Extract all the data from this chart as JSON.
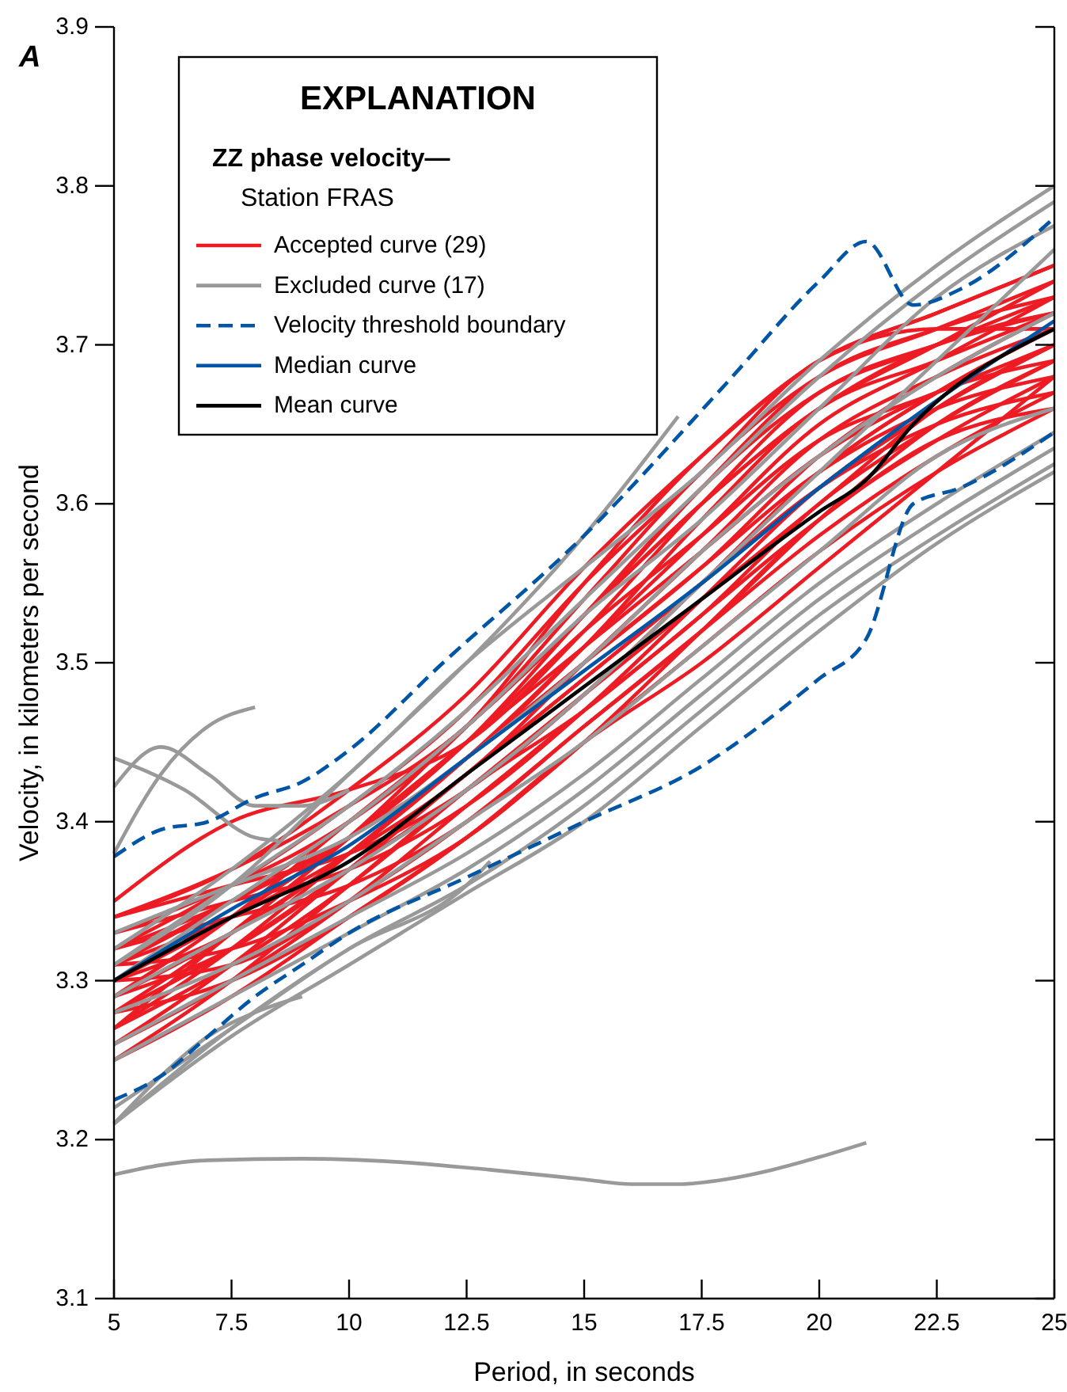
{
  "chart_data": {
    "type": "line",
    "title": "A",
    "xlabel": "Period, in seconds",
    "ylabel": "Velocity, in kilometers per second",
    "legend_title": "EXPLANATION",
    "subtitle": "ZZ phase velocity—",
    "annotations": [
      "Station FRAS"
    ],
    "xlim": [
      5,
      25
    ],
    "xticks": [
      5,
      7.5,
      10,
      12.5,
      15,
      17.5,
      20,
      22.5,
      25
    ],
    "ylim": [
      3.1,
      3.9
    ],
    "yticks": [
      3.1,
      3.2,
      3.3,
      3.4,
      3.5,
      3.6,
      3.7,
      3.8,
      3.9
    ],
    "grid": false,
    "legend": "top left",
    "marker": "none",
    "line_style": "solid",
    "x": [
      5,
      7.5,
      10,
      12.5,
      15,
      17.5,
      20,
      22.5,
      25
    ],
    "series": [
      {
        "name": "Accepted curve (29)",
        "color": "#ed1c24",
        "values": [
          3.35,
          3.4,
          3.42,
          3.45,
          3.52,
          3.6,
          3.67,
          3.7,
          3.72
        ]
      },
      {
        "color": "#ed1c24",
        "values": [
          3.34,
          3.37,
          3.41,
          3.46,
          3.54,
          3.62,
          3.68,
          3.71,
          3.74
        ]
      },
      {
        "color": "#ed1c24",
        "values": [
          3.33,
          3.36,
          3.4,
          3.46,
          3.55,
          3.63,
          3.69,
          3.72,
          3.75
        ]
      },
      {
        "color": "#ed1c24",
        "values": [
          3.32,
          3.35,
          3.39,
          3.45,
          3.53,
          3.61,
          3.67,
          3.7,
          3.73
        ]
      },
      {
        "color": "#ed1c24",
        "values": [
          3.32,
          3.36,
          3.41,
          3.47,
          3.55,
          3.62,
          3.69,
          3.71,
          3.71
        ]
      },
      {
        "color": "#ed1c24",
        "values": [
          3.31,
          3.35,
          3.39,
          3.44,
          3.51,
          3.59,
          3.66,
          3.69,
          3.72
        ]
      },
      {
        "color": "#ed1c24",
        "values": [
          3.31,
          3.34,
          3.38,
          3.43,
          3.5,
          3.57,
          3.64,
          3.68,
          3.71
        ]
      },
      {
        "color": "#ed1c24",
        "values": [
          3.3,
          3.34,
          3.39,
          3.45,
          3.52,
          3.58,
          3.64,
          3.67,
          3.7
        ]
      },
      {
        "color": "#ed1c24",
        "values": [
          3.3,
          3.33,
          3.38,
          3.44,
          3.51,
          3.58,
          3.65,
          3.69,
          3.73
        ]
      },
      {
        "color": "#ed1c24",
        "values": [
          3.29,
          3.33,
          3.38,
          3.44,
          3.5,
          3.56,
          3.63,
          3.68,
          3.72
        ]
      },
      {
        "color": "#ed1c24",
        "values": [
          3.29,
          3.32,
          3.37,
          3.43,
          3.49,
          3.55,
          3.61,
          3.66,
          3.7
        ]
      },
      {
        "color": "#ed1c24",
        "values": [
          3.28,
          3.32,
          3.37,
          3.42,
          3.48,
          3.55,
          3.62,
          3.67,
          3.71
        ]
      },
      {
        "color": "#ed1c24",
        "values": [
          3.28,
          3.33,
          3.39,
          3.45,
          3.51,
          3.57,
          3.63,
          3.67,
          3.69
        ]
      },
      {
        "color": "#ed1c24",
        "values": [
          3.27,
          3.31,
          3.36,
          3.42,
          3.48,
          3.54,
          3.6,
          3.66,
          3.7
        ]
      },
      {
        "color": "#ed1c24",
        "values": [
          3.27,
          3.32,
          3.38,
          3.44,
          3.5,
          3.56,
          3.62,
          3.66,
          3.68
        ]
      },
      {
        "color": "#ed1c24",
        "values": [
          3.26,
          3.3,
          3.35,
          3.41,
          3.47,
          3.53,
          3.6,
          3.65,
          3.69
        ]
      },
      {
        "color": "#ed1c24",
        "values": [
          3.26,
          3.31,
          3.37,
          3.43,
          3.49,
          3.55,
          3.61,
          3.65,
          3.67
        ]
      },
      {
        "color": "#ed1c24",
        "values": [
          3.25,
          3.29,
          3.34,
          3.39,
          3.45,
          3.52,
          3.59,
          3.64,
          3.68
        ]
      },
      {
        "color": "#ed1c24",
        "values": [
          3.25,
          3.3,
          3.36,
          3.42,
          3.47,
          3.53,
          3.59,
          3.64,
          3.66
        ]
      },
      {
        "color": "#ed1c24",
        "values": [
          3.33,
          3.35,
          3.37,
          3.41,
          3.47,
          3.54,
          3.61,
          3.66,
          3.7
        ]
      },
      {
        "color": "#ed1c24",
        "values": [
          3.34,
          3.36,
          3.38,
          3.42,
          3.48,
          3.55,
          3.62,
          3.67,
          3.71
        ]
      },
      {
        "color": "#ed1c24",
        "values": [
          3.32,
          3.34,
          3.36,
          3.4,
          3.46,
          3.52,
          3.59,
          3.65,
          3.69
        ]
      },
      {
        "color": "#ed1c24",
        "values": [
          3.3,
          3.31,
          3.35,
          3.4,
          3.46,
          3.52,
          3.58,
          3.63,
          3.67
        ]
      },
      {
        "color": "#ed1c24",
        "values": [
          3.31,
          3.32,
          3.35,
          3.39,
          3.45,
          3.51,
          3.57,
          3.62,
          3.66
        ]
      },
      {
        "color": "#ed1c24",
        "values": [
          3.28,
          3.3,
          3.34,
          3.39,
          3.45,
          3.5,
          3.56,
          3.62,
          3.68
        ]
      },
      {
        "color": "#ed1c24",
        "values": [
          3.29,
          3.34,
          3.4,
          3.46,
          3.53,
          3.6,
          3.66,
          3.7,
          3.74
        ]
      },
      {
        "color": "#ed1c24",
        "values": [
          3.34,
          3.37,
          3.42,
          3.48,
          3.56,
          3.63,
          3.69,
          3.72,
          3.75
        ]
      },
      {
        "color": "#ed1c24",
        "values": [
          3.27,
          3.33,
          3.39,
          3.46,
          3.53,
          3.6,
          3.66,
          3.7,
          3.72
        ]
      },
      {
        "color": "#ed1c24",
        "values": [
          3.31,
          3.35,
          3.4,
          3.46,
          3.53,
          3.61,
          3.68,
          3.71,
          3.73
        ]
      },
      {
        "name": "Excluded curve (17)",
        "color": "#999999",
        "x": [
          5,
          6,
          7,
          9,
          11,
          13,
          15,
          16,
          17,
          18,
          19,
          20,
          21
        ],
        "values": [
          3.178,
          3.184,
          3.187,
          3.188,
          3.186,
          3.181,
          3.175,
          3.172,
          3.172,
          3.175,
          3.181,
          3.189,
          3.198
        ]
      },
      {
        "color": "#999999",
        "x": [
          5,
          6.5,
          8,
          8.5
        ],
        "values": [
          3.44,
          3.42,
          3.39,
          3.388
        ]
      },
      {
        "color": "#999999",
        "x": [
          5,
          6,
          7,
          8,
          9,
          10
        ],
        "values": [
          3.422,
          3.447,
          3.43,
          3.41,
          3.41,
          3.42
        ]
      },
      {
        "color": "#999999",
        "x": [
          5,
          6,
          7,
          8
        ],
        "values": [
          3.38,
          3.43,
          3.46,
          3.472
        ]
      },
      {
        "color": "#999999",
        "x": [
          5,
          6,
          7,
          8,
          9
        ],
        "values": [
          3.21,
          3.24,
          3.265,
          3.28,
          3.29
        ]
      },
      {
        "color": "#999999",
        "x": [
          5,
          7.5,
          10,
          12.5,
          15,
          17
        ],
        "values": [
          3.31,
          3.36,
          3.43,
          3.5,
          3.58,
          3.655
        ]
      },
      {
        "color": "#999999",
        "x": [
          5,
          7.5,
          10,
          12.5,
          13
        ],
        "values": [
          3.21,
          3.27,
          3.32,
          3.36,
          3.375
        ]
      },
      {
        "color": "#999999",
        "values": [
          3.32,
          3.37,
          3.43,
          3.5,
          3.56,
          3.62,
          3.69,
          3.75,
          3.8
        ]
      },
      {
        "color": "#999999",
        "values": [
          3.31,
          3.36,
          3.41,
          3.47,
          3.54,
          3.61,
          3.68,
          3.74,
          3.79
        ]
      },
      {
        "color": "#999999",
        "values": [
          3.3,
          3.35,
          3.4,
          3.46,
          3.53,
          3.59,
          3.66,
          3.73,
          3.775
        ]
      },
      {
        "color": "#999999",
        "values": [
          3.29,
          3.33,
          3.37,
          3.42,
          3.48,
          3.55,
          3.62,
          3.69,
          3.76
        ]
      },
      {
        "color": "#999999",
        "values": [
          3.28,
          3.31,
          3.35,
          3.4,
          3.45,
          3.51,
          3.57,
          3.63,
          3.66
        ]
      },
      {
        "color": "#999999",
        "values": [
          3.26,
          3.3,
          3.34,
          3.38,
          3.43,
          3.49,
          3.55,
          3.6,
          3.645
        ]
      },
      {
        "color": "#999999",
        "values": [
          3.25,
          3.29,
          3.33,
          3.37,
          3.42,
          3.48,
          3.54,
          3.59,
          3.635
        ]
      },
      {
        "color": "#999999",
        "values": [
          3.22,
          3.27,
          3.32,
          3.36,
          3.41,
          3.47,
          3.53,
          3.58,
          3.625
        ]
      },
      {
        "color": "#999999",
        "values": [
          3.21,
          3.265,
          3.31,
          3.355,
          3.4,
          3.46,
          3.52,
          3.575,
          3.62
        ]
      },
      {
        "color": "#999999",
        "values": [
          3.33,
          3.36,
          3.39,
          3.44,
          3.5,
          3.57,
          3.63,
          3.68,
          3.72
        ]
      },
      {
        "name": "Velocity threshold boundary",
        "color": "#0055a5",
        "line_style": "dashed",
        "x": [
          5,
          6,
          7,
          8,
          9,
          10,
          12,
          15,
          18,
          20,
          21,
          22,
          23,
          25
        ],
        "values": [
          3.378,
          3.395,
          3.4,
          3.415,
          3.425,
          3.445,
          3.5,
          3.58,
          3.675,
          3.74,
          3.765,
          3.725,
          3.735,
          3.78
        ]
      },
      {
        "color": "#0055a5",
        "line_style": "dashed",
        "x": [
          5,
          6,
          7,
          8,
          9,
          10,
          12.5,
          15,
          17.5,
          20,
          21,
          22,
          23,
          25
        ],
        "values": [
          3.225,
          3.24,
          3.265,
          3.29,
          3.31,
          3.33,
          3.365,
          3.4,
          3.435,
          3.49,
          3.515,
          3.6,
          3.61,
          3.645
        ]
      },
      {
        "name": "Median curve",
        "color": "#0055a5",
        "values": [
          3.3,
          3.345,
          3.385,
          3.44,
          3.495,
          3.55,
          3.61,
          3.665,
          3.715
        ]
      },
      {
        "name": "Mean curve",
        "color": "#000000",
        "x": [
          5,
          7.5,
          10,
          12.5,
          15,
          17.5,
          20,
          21,
          22,
          25
        ],
        "values": [
          3.3,
          3.34,
          3.375,
          3.43,
          3.485,
          3.54,
          3.595,
          3.615,
          3.65,
          3.71
        ]
      }
    ]
  }
}
